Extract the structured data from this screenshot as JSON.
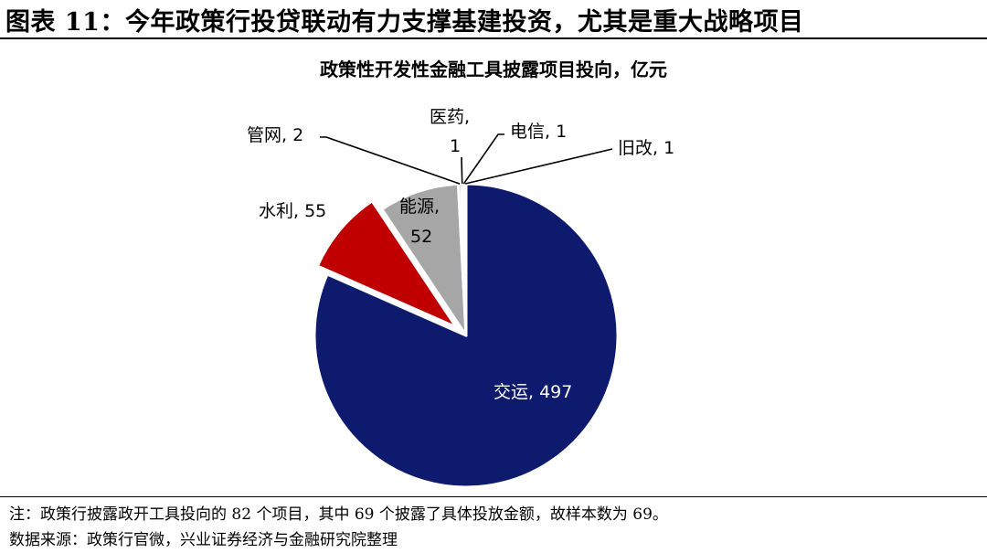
{
  "figure": {
    "title": "图表 11：今年政策行投贷联动有力支撑基建投资，尤其是重大战略项目"
  },
  "chart_data": {
    "type": "pie",
    "title": "政策性开发性金融工具披露项目投向，亿元",
    "slices": [
      {
        "label": "交运",
        "value": 497,
        "color": "#0d1a6e",
        "label_text": "交运, 497"
      },
      {
        "label": "水利",
        "value": 55,
        "color": "#c00000",
        "label_text": "水利, 55",
        "exploded": true
      },
      {
        "label": "能源",
        "value": 52,
        "color": "#a6a6a6",
        "label_text_line1": "能源,",
        "label_text_line2": "52"
      },
      {
        "label": "管网",
        "value": 2,
        "color": "#7f7f7f",
        "label_text": "管网, 2"
      },
      {
        "label": "医药",
        "value": 1,
        "color": "#4472c4",
        "label_text_line1": "医药,",
        "label_text_line2": "1"
      },
      {
        "label": "电信",
        "value": 1,
        "color": "#1f3864",
        "label_text": "电信, 1"
      },
      {
        "label": "旧改",
        "value": 1,
        "color": "#d9d9d9",
        "label_text": "旧改, 1"
      }
    ]
  },
  "notes": {
    "note": "注：政策行披露政开工具投向的 82 个项目，其中 69 个披露了具体投放金额，故样本数为 69。",
    "source": "数据来源：政策行官微，兴业证券经济与金融研究院整理"
  }
}
